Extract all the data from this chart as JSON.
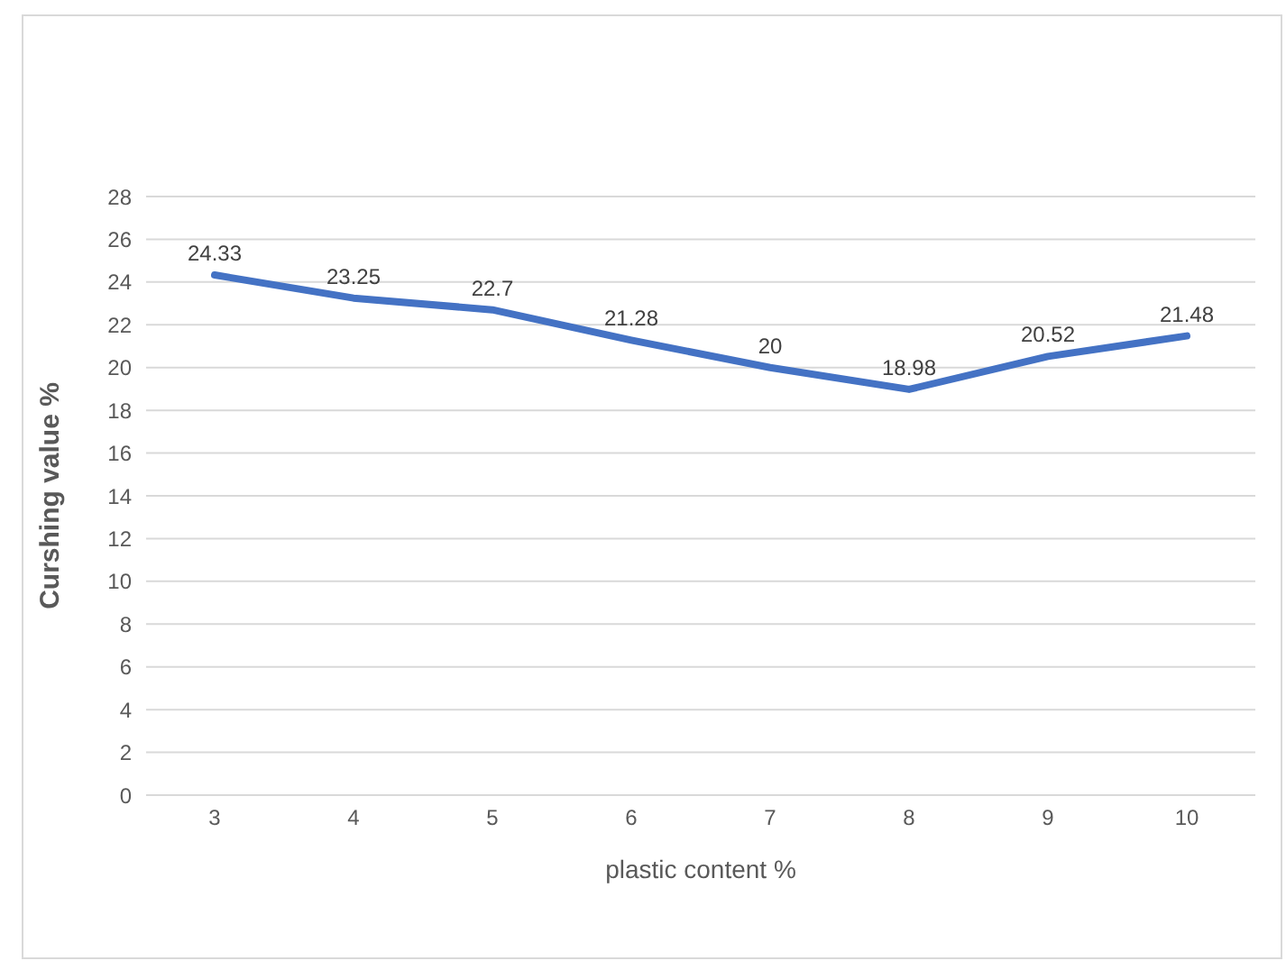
{
  "chart_data": {
    "type": "line",
    "xlabel": "plastic content %",
    "ylabel": "Curshing value  %",
    "categories": [
      "3",
      "4",
      "5",
      "6",
      "7",
      "8",
      "9",
      "10"
    ],
    "series": [
      {
        "color": "#4472c4",
        "values": [
          24.33,
          23.25,
          22.7,
          21.28,
          20,
          18.98,
          20.52,
          21.48
        ]
      }
    ],
    "ylim": [
      0,
      28
    ],
    "yticks": [
      0,
      2,
      4,
      6,
      8,
      10,
      12,
      14,
      16,
      18,
      20,
      22,
      24,
      26,
      28
    ],
    "grid": "y",
    "data_labels": true,
    "marker": "none"
  }
}
